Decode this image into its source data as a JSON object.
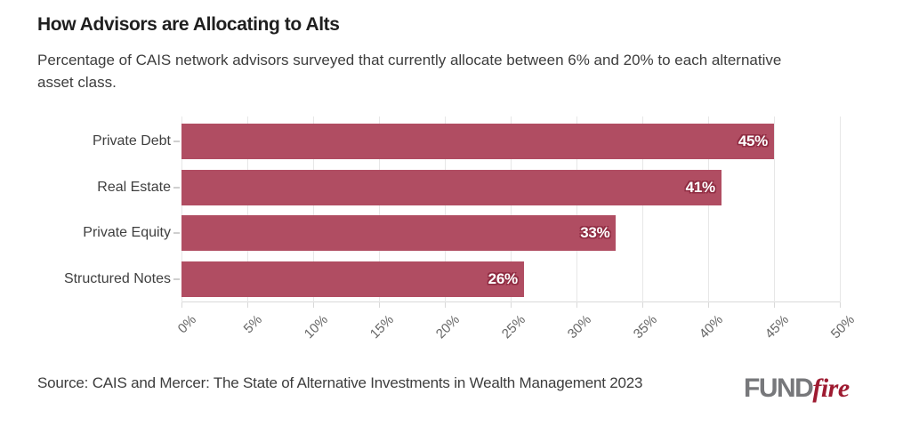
{
  "header": {
    "title": "How Advisors are Allocating to Alts",
    "subtitle": "Percentage of CAIS network advisors surveyed that currently allocate between 6% and 20% to each alternative asset class."
  },
  "chart_data": {
    "type": "bar",
    "orientation": "horizontal",
    "title": "How Advisors are Allocating to Alts",
    "subtitle": "Percentage of CAIS network advisors surveyed that currently allocate between 6% and 20% to each alternative asset class.",
    "categories": [
      "Private Debt",
      "Real Estate",
      "Private Equity",
      "Structured Notes"
    ],
    "values": [
      45,
      41,
      33,
      26
    ],
    "value_labels": [
      "45%",
      "41%",
      "33%",
      "26%"
    ],
    "x_ticks": [
      "0%",
      "5%",
      "10%",
      "15%",
      "20%",
      "25%",
      "30%",
      "35%",
      "40%",
      "45%",
      "50%"
    ],
    "xlim": [
      0,
      50
    ],
    "xlabel": "",
    "ylabel": "",
    "grid": true,
    "gridline_color": "#e7e7e7",
    "bar_color": "#b04d62",
    "value_label_color": "#ffffff",
    "value_label_outline_color": "#8f2c42",
    "legend": false
  },
  "footer": {
    "source": "Source: CAIS and Mercer: The State of Alternative Investments in Wealth Management 2023",
    "logo": {
      "part1": "FUND",
      "part2": "fire",
      "part1_color": "#77787b",
      "part2_color": "#9e1b31"
    }
  },
  "colors": {
    "background": "#ffffff",
    "title": "#1f1f1f",
    "subtitle": "#3d3d3d",
    "category_label": "#3f3f3f",
    "tick_label": "#666666",
    "axis_line": "#d9d9d9"
  }
}
